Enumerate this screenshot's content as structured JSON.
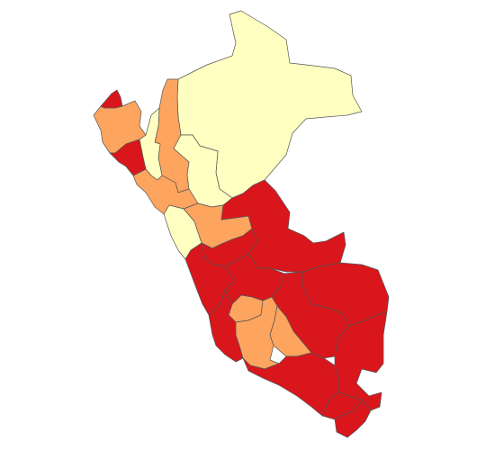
{
  "map": {
    "country": "Peru",
    "type": "choropleth",
    "unit": "region",
    "legend": null,
    "palette": {
      "low": "#ffffc1",
      "mid": "#fda45e",
      "high": "#d9161b",
      "border": "#555555",
      "background": "#ffffff"
    },
    "regions": [
      {
        "id": "loreto",
        "class": "low"
      },
      {
        "id": "amazonas",
        "class": "mid"
      },
      {
        "id": "cajamarca",
        "class": "low"
      },
      {
        "id": "san-martin",
        "class": "low"
      },
      {
        "id": "la-libertad",
        "class": "mid"
      },
      {
        "id": "tumbes",
        "class": "high"
      },
      {
        "id": "piura",
        "class": "mid"
      },
      {
        "id": "lambayeque",
        "class": "high"
      },
      {
        "id": "ancash",
        "class": "low"
      },
      {
        "id": "huanuco",
        "class": "mid"
      },
      {
        "id": "pasco",
        "class": "high"
      },
      {
        "id": "lima",
        "class": "high"
      },
      {
        "id": "ucayali",
        "class": "high"
      },
      {
        "id": "junin",
        "class": "high"
      },
      {
        "id": "madre-de-dios",
        "class": "high"
      },
      {
        "id": "cusco",
        "class": "high"
      },
      {
        "id": "huancavelica",
        "class": "mid"
      },
      {
        "id": "ica",
        "class": "high"
      },
      {
        "id": "ayacucho",
        "class": "mid"
      },
      {
        "id": "apurimac",
        "class": "mid"
      },
      {
        "id": "arequipa",
        "class": "high"
      },
      {
        "id": "puno",
        "class": "high"
      },
      {
        "id": "moquegua",
        "class": "high"
      },
      {
        "id": "tacna",
        "class": "high"
      }
    ]
  }
}
